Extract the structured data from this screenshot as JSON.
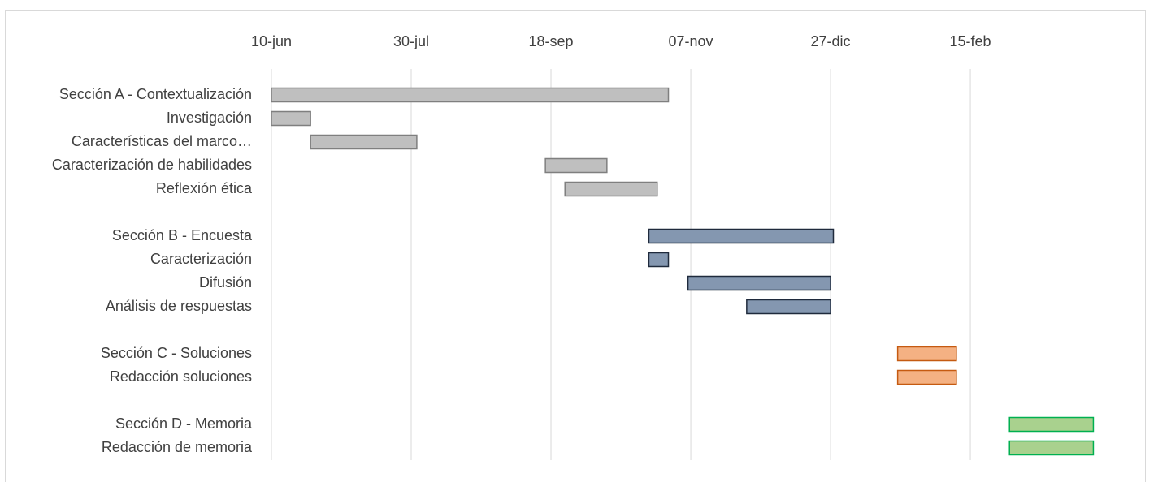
{
  "chart_data": {
    "type": "gantt",
    "title": "",
    "xlabel": "",
    "ylabel": "",
    "x_axis": {
      "type": "date",
      "range": [
        "2021-06-10",
        "2022-03-30"
      ],
      "ticks": [
        {
          "date": "2021-06-10",
          "label": "10-jun"
        },
        {
          "date": "2021-07-30",
          "label": "30-jul"
        },
        {
          "date": "2021-09-18",
          "label": "18-sep"
        },
        {
          "date": "2021-11-07",
          "label": "07-nov"
        },
        {
          "date": "2021-12-27",
          "label": "27-dic"
        },
        {
          "date": "2022-02-15",
          "label": "15-feb"
        }
      ],
      "gridlines": true,
      "position": "top"
    },
    "tasks": [
      {
        "label": "Sección A - Contextualización",
        "start": "2021-06-10",
        "end": "2021-10-30",
        "color": "#bfbfbf",
        "border": "#7f7f7f"
      },
      {
        "label": "Investigación",
        "start": "2021-06-10",
        "end": "2021-06-24",
        "color": "#bfbfbf",
        "border": "#7f7f7f"
      },
      {
        "label": "Características del marco…",
        "start": "2021-06-24",
        "end": "2021-08-01",
        "color": "#bfbfbf",
        "border": "#7f7f7f"
      },
      {
        "label": "Caracterización de habilidades",
        "start": "2021-09-16",
        "end": "2021-10-08",
        "color": "#bfbfbf",
        "border": "#7f7f7f"
      },
      {
        "label": "Reflexión ética",
        "start": "2021-09-23",
        "end": "2021-10-26",
        "color": "#bfbfbf",
        "border": "#7f7f7f"
      },
      {
        "label": "",
        "start": null,
        "end": null
      },
      {
        "label": "Sección B - Encuesta",
        "start": "2021-10-23",
        "end": "2021-12-28",
        "color": "#8497b0",
        "border": "#1f2a3c"
      },
      {
        "label": "Caracterización",
        "start": "2021-10-23",
        "end": "2021-10-30",
        "color": "#8497b0",
        "border": "#1f2a3c"
      },
      {
        "label": "Difusión",
        "start": "2021-11-06",
        "end": "2021-12-27",
        "color": "#8497b0",
        "border": "#1f2a3c"
      },
      {
        "label": "Análisis de respuestas",
        "start": "2021-11-27",
        "end": "2021-12-27",
        "color": "#8497b0",
        "border": "#1f2a3c"
      },
      {
        "label": "",
        "start": null,
        "end": null
      },
      {
        "label": "Sección C - Soluciones",
        "start": "2022-01-20",
        "end": "2022-02-10",
        "color": "#f4b183",
        "border": "#c55a11"
      },
      {
        "label": "Redacción soluciones",
        "start": "2022-01-20",
        "end": "2022-02-10",
        "color": "#f4b183",
        "border": "#c55a11"
      },
      {
        "label": "",
        "start": null,
        "end": null
      },
      {
        "label": "Sección D - Memoria",
        "start": "2022-03-01",
        "end": "2022-03-31",
        "color": "#a9d18e",
        "border": "#00b050"
      },
      {
        "label": "Redacción de memoria",
        "start": "2022-03-01",
        "end": "2022-03-31",
        "color": "#a9d18e",
        "border": "#00b050"
      }
    ]
  }
}
